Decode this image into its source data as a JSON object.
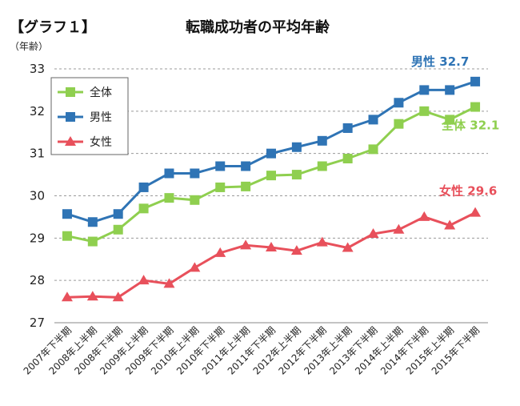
{
  "page": {
    "tag": "【グラフ１】",
    "title": "転職成功者の平均年齢",
    "unit": "（年齢）"
  },
  "chart_data": {
    "type": "line",
    "title": "転職成功者の平均年齢",
    "ylabel": "（年齢）",
    "xlabel": "",
    "ylim": [
      27,
      33
    ],
    "yticks": [
      27,
      28,
      29,
      30,
      31,
      32,
      33
    ],
    "grid": true,
    "legend_position": "top-left",
    "categories": [
      "2007年下半期",
      "2008年上半期",
      "2008年下半期",
      "2009年上半期",
      "2009年下半期",
      "2010年上半期",
      "2010年下半期",
      "2011年上半期",
      "2011年下半期",
      "2012年上半期",
      "2012年下半期",
      "2013年上半期",
      "2013年下半期",
      "2014年上半期",
      "2014年下半期",
      "2015年上半期",
      "2015年下半期"
    ],
    "series": [
      {
        "name": "全体",
        "color": "#8fcf4f",
        "marker": "square",
        "values": [
          29.05,
          28.92,
          29.2,
          29.7,
          29.95,
          29.9,
          30.2,
          30.22,
          30.48,
          30.5,
          30.7,
          30.88,
          31.1,
          31.7,
          32.0,
          31.8,
          32.1
        ],
        "end_label": "全体 32.1"
      },
      {
        "name": "男性",
        "color": "#2f74b5",
        "marker": "square",
        "values": [
          29.57,
          29.38,
          29.57,
          30.2,
          30.53,
          30.53,
          30.7,
          30.7,
          31.0,
          31.15,
          31.3,
          31.6,
          31.8,
          32.2,
          32.5,
          32.5,
          32.7
        ],
        "end_label": "男性 32.7"
      },
      {
        "name": "女性",
        "color": "#e8505b",
        "marker": "triangle",
        "values": [
          27.6,
          27.62,
          27.6,
          28.0,
          27.92,
          28.3,
          28.65,
          28.83,
          28.78,
          28.7,
          28.9,
          28.77,
          29.1,
          29.2,
          29.5,
          29.3,
          29.6
        ],
        "end_label": "女性 29.6"
      }
    ]
  }
}
